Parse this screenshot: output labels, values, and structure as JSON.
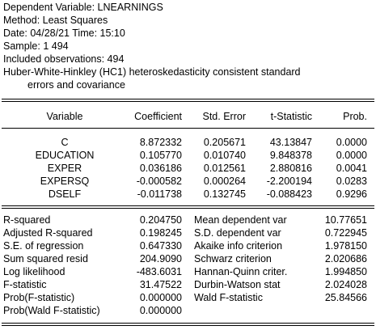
{
  "header": {
    "dependent_variable": "Dependent Variable: LNEARNINGS",
    "method": "Method: Least Squares",
    "date_time": "Date: 04/28/21   Time: 15:10",
    "sample": "Sample: 1 494",
    "included_observations": "Included observations: 494",
    "covariance_note_line1": "Huber-White-Hinkley (HC1) heteroskedasticity consistent standard",
    "covariance_note_line2": "errors and covariance"
  },
  "coef_table": {
    "columns": [
      "Variable",
      "Coefficient",
      "Std. Error",
      "t-Statistic",
      "Prob."
    ],
    "rows": [
      {
        "variable": "C",
        "coefficient": "8.872332",
        "std_error": "0.205671",
        "t_statistic": "43.13847",
        "prob": "0.0000"
      },
      {
        "variable": "EDUCATION",
        "coefficient": "0.105770",
        "std_error": "0.010740",
        "t_statistic": "9.848378",
        "prob": "0.0000"
      },
      {
        "variable": "EXPER",
        "coefficient": "0.036186",
        "std_error": "0.012561",
        "t_statistic": "2.880816",
        "prob": "0.0041"
      },
      {
        "variable": "EXPERSQ",
        "coefficient": "-0.000582",
        "std_error": "0.000264",
        "t_statistic": "-2.200194",
        "prob": "0.0283"
      },
      {
        "variable": "DSELF",
        "coefficient": "-0.011738",
        "std_error": "0.132745",
        "t_statistic": "-0.088423",
        "prob": "0.9296"
      }
    ]
  },
  "stats_table": {
    "rows": [
      {
        "label_left": "R-squared",
        "value_left": "0.204750",
        "label_right": "Mean dependent var",
        "value_right": "10.77651"
      },
      {
        "label_left": "Adjusted R-squared",
        "value_left": "0.198245",
        "label_right": "S.D. dependent var",
        "value_right": "0.722945"
      },
      {
        "label_left": "S.E. of regression",
        "value_left": "0.647330",
        "label_right": "Akaike info criterion",
        "value_right": "1.978150"
      },
      {
        "label_left": "Sum squared resid",
        "value_left": "204.9090",
        "label_right": "Schwarz criterion",
        "value_right": "2.020686"
      },
      {
        "label_left": "Log likelihood",
        "value_left": "-483.6031",
        "label_right": "Hannan-Quinn criter.",
        "value_right": "1.994850"
      },
      {
        "label_left": "F-statistic",
        "value_left": "31.47522",
        "label_right": "Durbin-Watson stat",
        "value_right": "2.024028"
      },
      {
        "label_left": "Prob(F-statistic)",
        "value_left": "0.000000",
        "label_right": "Wald F-statistic",
        "value_right": "25.84566"
      },
      {
        "label_left": "Prob(Wald F-statistic)",
        "value_left": "0.000000",
        "label_right": "",
        "value_right": ""
      }
    ]
  }
}
